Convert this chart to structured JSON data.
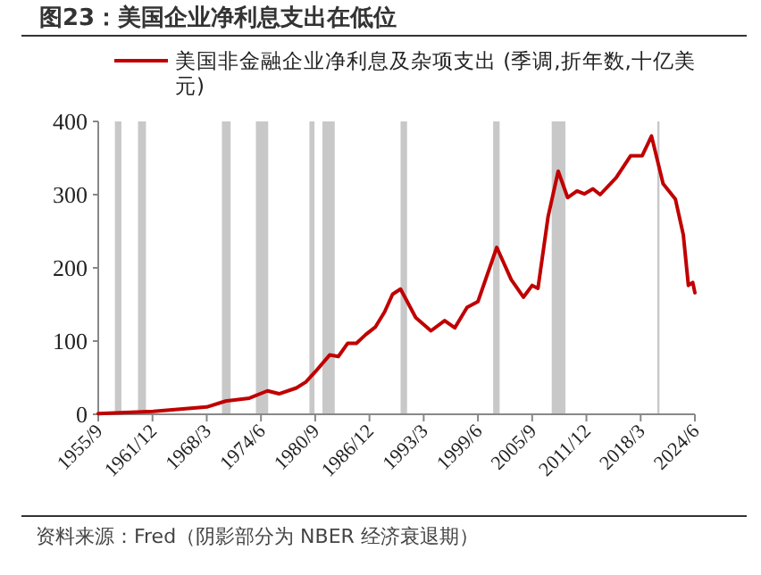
{
  "chart_data": {
    "type": "line",
    "title": "图23：美国企业净利息支出在低位",
    "x": [
      "1955-09",
      "1962-01",
      "1968-03",
      "1970-05",
      "1973-02",
      "1975-03",
      "1976-07",
      "1978-07",
      "1979-08",
      "1980-09",
      "1982-05",
      "1983-05",
      "1984-06",
      "1985-06",
      "1986-07",
      "1987-08",
      "1988-09",
      "1989-08",
      "1990-07",
      "1992-04",
      "1994-01",
      "1995-08",
      "1996-10",
      "1998-03",
      "1999-06",
      "2001-08",
      "2003-04",
      "2004-09",
      "2005-09",
      "2006-05",
      "2007-07",
      "2008-09",
      "2009-10",
      "2010-11",
      "2011-09",
      "2012-09",
      "2013-07",
      "2015-05",
      "2017-01",
      "2018-05",
      "2019-06",
      "2020-10",
      "2022-03",
      "2023-02",
      "2023-09",
      "2024-03",
      "2024-06"
    ],
    "series": [
      {
        "name": "美国非金融企业净利息及杂项支出 (季调,折年数,十亿美元)",
        "color": "#c00000",
        "values": [
          1,
          4,
          10,
          18,
          22,
          32,
          28,
          36,
          44,
          58,
          81,
          79,
          97,
          97,
          109,
          119,
          140,
          164,
          171,
          132,
          114,
          128,
          118,
          146,
          154,
          228,
          184,
          160,
          176,
          172,
          270,
          332,
          296,
          305,
          301,
          308,
          300,
          323,
          353,
          353,
          380,
          315,
          294,
          245,
          176,
          180,
          166
        ]
      }
    ],
    "ylim": [
      0,
      400
    ],
    "yticks": [
      0,
      100,
      200,
      300,
      400
    ],
    "xlim": [
      "1955-09",
      "2024-06"
    ],
    "xticks": [
      {
        "value": "1955-09",
        "label": "1955/9"
      },
      {
        "value": "1961-12",
        "label": "1961/12"
      },
      {
        "value": "1968-03",
        "label": "1968/3"
      },
      {
        "value": "1974-06",
        "label": "1974/6"
      },
      {
        "value": "1980-09",
        "label": "1980/9"
      },
      {
        "value": "1986-12",
        "label": "1986/12"
      },
      {
        "value": "1993-03",
        "label": "1993/3"
      },
      {
        "value": "1999-06",
        "label": "1999/6"
      },
      {
        "value": "2005-09",
        "label": "2005/9"
      },
      {
        "value": "2011-12",
        "label": "2011/12"
      },
      {
        "value": "2018-03",
        "label": "2018/3"
      },
      {
        "value": "2024-06",
        "label": "2024/6"
      }
    ],
    "bands": [
      {
        "axis": "x",
        "from": "1957-08",
        "to": "1958-05",
        "color": "#c8c8c8"
      },
      {
        "axis": "x",
        "from": "1960-04",
        "to": "1961-03",
        "color": "#c8c8c8"
      },
      {
        "axis": "x",
        "from": "1969-12",
        "to": "1970-12",
        "color": "#c8c8c8"
      },
      {
        "axis": "x",
        "from": "1973-11",
        "to": "1975-04",
        "color": "#c8c8c8"
      },
      {
        "axis": "x",
        "from": "1980-01",
        "to": "1980-08",
        "color": "#c8c8c8"
      },
      {
        "axis": "x",
        "from": "1981-07",
        "to": "1982-12",
        "color": "#c8c8c8"
      },
      {
        "axis": "x",
        "from": "1990-07",
        "to": "1991-04",
        "color": "#c8c8c8"
      },
      {
        "axis": "x",
        "from": "2001-03",
        "to": "2001-12",
        "color": "#c8c8c8"
      },
      {
        "axis": "x",
        "from": "2007-12",
        "to": "2009-07",
        "color": "#c8c8c8"
      },
      {
        "axis": "x",
        "from": "2020-02",
        "to": "2020-05",
        "color": "#c8c8c8"
      }
    ],
    "legend": "top",
    "grid": false,
    "marker": "none",
    "line_style": "solid",
    "annotations": [
      "资料来源：Fred（阴影部分为 NBER 经济衰退期）"
    ]
  }
}
